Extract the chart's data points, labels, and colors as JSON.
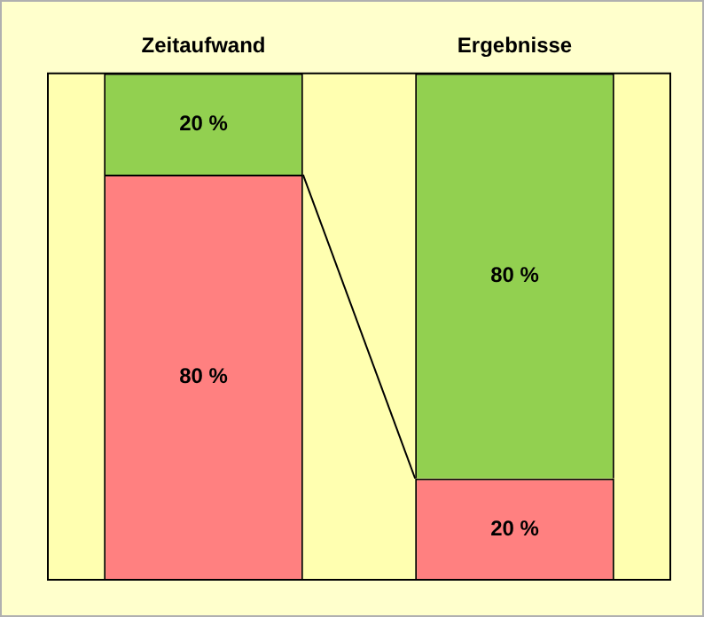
{
  "chart_data": {
    "type": "bar",
    "stacked": true,
    "categories": [
      "Zeitaufwand",
      "Ergebnisse"
    ],
    "ylim": [
      0,
      100
    ],
    "relative": false,
    "series": [
      {
        "color": "#ff8080",
        "values": [
          80,
          20
        ],
        "value_labels": [
          "80 %",
          "20 %"
        ]
      },
      {
        "color": "#92d050",
        "values": [
          20,
          80
        ],
        "value_labels": [
          "20 %",
          "80 %"
        ]
      }
    ]
  }
}
